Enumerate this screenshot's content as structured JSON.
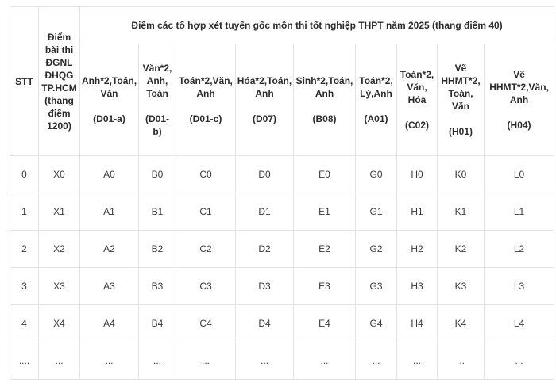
{
  "table": {
    "stt_header": "STT",
    "exam_header": "Điểm\nbài thi\nĐGNL\nĐHQG\nTP.HCM\n(thang\nđiểm\n1200)",
    "group_header": "Điểm các tổ hợp xét tuyển gốc môn thi tốt nghiệp THPT năm 2025 (thang điểm 40)",
    "combos": [
      "Anh*2,Toán,\nVăn\n\n(D01-a)",
      "Văn*2,\nAnh,\nToán\n\n(D01-\nb)",
      "Toán*2,Văn,\nAnh\n\n(D01-c)",
      "Hóa*2,Toán,\nAnh\n\n(D07)",
      "Sinh*2,Toán,\nAnh\n\n(B08)",
      "Toán*2,\nLý,Anh\n\n(A01)",
      "Toán*2,\nVăn,\nHóa\n\n(C02)",
      "Vẽ\nHHMT*2,\nToán,\nVăn\n\n(H01)",
      "Vẽ\nHHMT*2,Văn,\nAnh\n\n(H04)"
    ],
    "rows": [
      [
        "0",
        "X0",
        "A0",
        "B0",
        "C0",
        "D0",
        "E0",
        "G0",
        "H0",
        "K0",
        "L0"
      ],
      [
        "1",
        "X1",
        "A1",
        "B1",
        "C1",
        "D1",
        "E1",
        "G1",
        "H1",
        "K1",
        "L1"
      ],
      [
        "2",
        "X2",
        "A2",
        "B2",
        "C2",
        "D2",
        "E2",
        "G2",
        "H2",
        "K2",
        "L2"
      ],
      [
        "3",
        "X3",
        "A3",
        "B3",
        "C3",
        "D3",
        "E3",
        "G3",
        "H3",
        "K3",
        "L3"
      ],
      [
        "4",
        "X4",
        "A4",
        "B4",
        "C4",
        "D4",
        "E4",
        "G4",
        "H4",
        "K4",
        "L4"
      ],
      [
        "....",
        "...",
        "...",
        "...",
        "...",
        "...",
        "...",
        "...",
        "...",
        "...",
        "..."
      ]
    ]
  }
}
